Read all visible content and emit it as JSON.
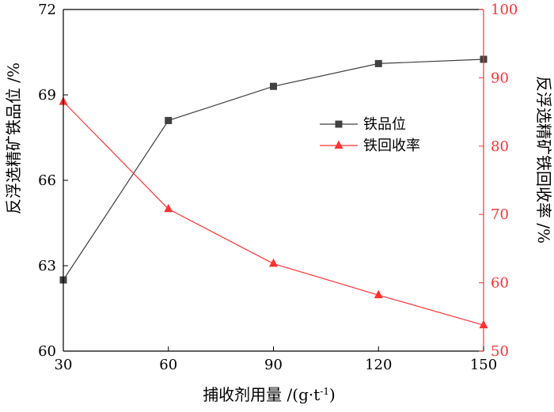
{
  "chart_data": {
    "type": "line",
    "title": "",
    "xlabel": "捕收剂用量 /(g·t",
    "xlabel_sup": "-1",
    "xlabel_end": ")",
    "ylabel_left": "反浮选精矿铁品位 /%",
    "ylabel_right": "反浮选精矿铁回收率 /%",
    "x": [
      30,
      60,
      90,
      120,
      150
    ],
    "x_ticks": [
      "30",
      "60",
      "90",
      "120",
      "150"
    ],
    "xlim": [
      30,
      150
    ],
    "ylim_left": [
      60,
      72
    ],
    "y_ticks_left": [
      "60",
      "63",
      "66",
      "69",
      "72"
    ],
    "ylim_right": [
      50,
      100
    ],
    "y_ticks_right": [
      "50",
      "60",
      "70",
      "80",
      "90",
      "100"
    ],
    "grid": false,
    "legend_position": "center-right",
    "series": [
      {
        "name": "铁品位",
        "axis": "left",
        "marker": "square",
        "color": "#404040",
        "values": [
          62.5,
          68.1,
          69.3,
          70.1,
          70.25
        ]
      },
      {
        "name": "铁回收率",
        "axis": "right",
        "marker": "triangle",
        "color": "#ff3333",
        "values": [
          86.5,
          70.8,
          62.8,
          58.2,
          53.8
        ]
      }
    ]
  }
}
